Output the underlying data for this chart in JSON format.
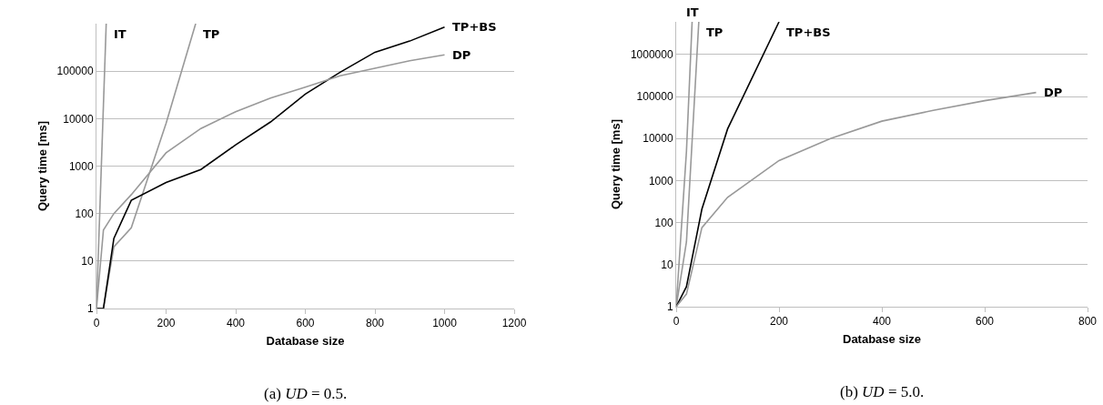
{
  "chart_data": [
    {
      "type": "line",
      "xlabel": "Database size",
      "ylabel": "Query time [ms]",
      "log": "y",
      "grid": "y",
      "legend": false,
      "xlim": [
        0,
        1200
      ],
      "xticks": [
        0,
        200,
        400,
        600,
        800,
        1000,
        1200
      ],
      "ylim": [
        1,
        1000000
      ],
      "yticks": [
        1,
        10,
        100,
        1000,
        10000,
        100000
      ],
      "annotations": [
        "(a) UD = 0.5."
      ],
      "series": [
        {
          "name": "IT",
          "color": "#999999",
          "x": [
            0,
            28
          ],
          "values": [
            1,
            1000000
          ]
        },
        {
          "name": "TP",
          "color": "#999999",
          "x": [
            0,
            20,
            50,
            100,
            200,
            285
          ],
          "values": [
            1,
            1,
            20,
            50,
            8000,
            1000000
          ]
        },
        {
          "name": "TP+BS",
          "color": "#000000",
          "x": [
            0,
            20,
            50,
            100,
            200,
            300,
            400,
            500,
            600,
            700,
            800,
            900,
            1000
          ],
          "values": [
            1,
            1,
            30,
            190,
            450,
            850,
            2800,
            8500,
            33000,
            95000,
            250000,
            430000,
            850000
          ]
        },
        {
          "name": "DP",
          "color": "#999999",
          "x": [
            0,
            20,
            50,
            100,
            200,
            300,
            400,
            500,
            600,
            700,
            800,
            900,
            1000
          ],
          "values": [
            1,
            45,
            100,
            250,
            1900,
            6200,
            14000,
            27000,
            46000,
            80000,
            115000,
            165000,
            220000
          ]
        }
      ]
    },
    {
      "type": "line",
      "xlabel": "Database size",
      "ylabel": "Query time [ms]",
      "log": "y",
      "grid": "y",
      "legend": false,
      "xlim": [
        0,
        800
      ],
      "xticks": [
        0,
        200,
        400,
        600,
        800
      ],
      "ylim": [
        1,
        6000000
      ],
      "yticks": [
        1,
        10,
        100,
        1000,
        10000,
        100000,
        1000000
      ],
      "annotations": [
        "(b) UD = 5.0."
      ],
      "series": [
        {
          "name": "IT",
          "color": "#999999",
          "x": [
            0,
            20,
            31
          ],
          "values": [
            1,
            5000,
            6000000
          ]
        },
        {
          "name": "TP",
          "color": "#999999",
          "x": [
            0,
            20,
            44
          ],
          "values": [
            1,
            35,
            6000000
          ]
        },
        {
          "name": "TP+BS",
          "color": "#000000",
          "x": [
            0,
            20,
            50,
            100,
            200
          ],
          "values": [
            1,
            3,
            210,
            17000,
            6000000
          ]
        },
        {
          "name": "DP",
          "color": "#999999",
          "x": [
            0,
            20,
            50,
            100,
            200,
            300,
            400,
            500,
            600,
            700
          ],
          "values": [
            1,
            2,
            76,
            400,
            3000,
            10000,
            26000,
            47000,
            80000,
            125000
          ]
        }
      ]
    }
  ]
}
